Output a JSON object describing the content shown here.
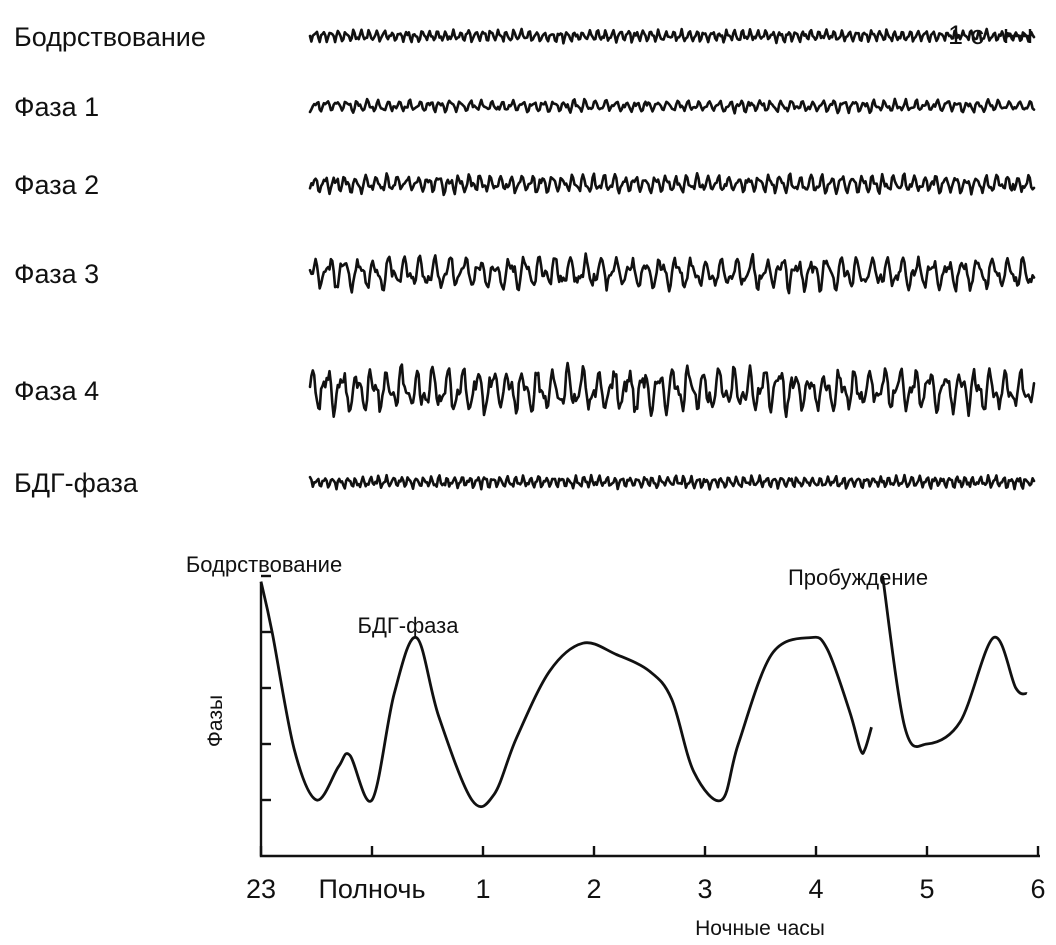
{
  "chart_data": [
    {
      "type": "line",
      "scale_bar_label": "1 с",
      "series": [
        {
          "name": "Бодрствование",
          "amplitude": "low",
          "frequency": "high"
        },
        {
          "name": "Фаза 1",
          "amplitude": "low",
          "frequency": "medium"
        },
        {
          "name": "Фаза 2",
          "amplitude": "low-medium",
          "frequency": "medium"
        },
        {
          "name": "Фаза 3",
          "amplitude": "medium-high",
          "frequency": "low"
        },
        {
          "name": "Фаза 4",
          "amplitude": "high",
          "frequency": "low"
        },
        {
          "name": "БДГ-фаза",
          "amplitude": "low",
          "frequency": "high"
        }
      ]
    },
    {
      "type": "line",
      "title": "",
      "xlabel": "Ночные часы",
      "ylabel": "Фазы",
      "x_tick_labels": [
        "23",
        "Полночь",
        "1",
        "2",
        "3",
        "4",
        "5",
        "6"
      ],
      "x_ticks": [
        23,
        24,
        25,
        26,
        27,
        28,
        29,
        30
      ],
      "xlim": [
        23,
        30
      ],
      "ylim": [
        0,
        5
      ],
      "y_ticks": [
        1,
        2,
        3,
        4,
        5
      ],
      "annotations": [
        {
          "text": "Бодрствование",
          "x": 23.0,
          "y": 5
        },
        {
          "text": "БДГ-фаза",
          "x": 24.35,
          "y": 3.9
        },
        {
          "text": "Пробуждение",
          "x": 28.4,
          "y": 5
        }
      ],
      "series": [
        {
          "x": [
            23.0,
            23.1,
            23.3,
            23.5,
            23.7,
            23.8,
            24.0,
            24.2,
            24.4,
            24.6,
            24.9,
            25.1,
            25.3,
            25.6,
            25.9,
            26.2,
            26.5,
            26.7,
            26.9,
            27.15,
            27.3,
            27.6,
            27.95,
            28.1,
            28.3,
            28.4,
            28.44,
            28.5,
            28.56,
            28.6,
            28.8,
            29.0,
            29.3,
            29.6,
            29.8,
            29.9
          ],
          "y": [
            4.9,
            4.0,
            1.9,
            1.0,
            1.6,
            1.8,
            1.0,
            2.9,
            3.9,
            2.5,
            1.0,
            1.1,
            2.1,
            3.3,
            3.8,
            3.6,
            3.3,
            2.8,
            1.5,
            1.0,
            2.0,
            3.6,
            3.9,
            3.7,
            2.6,
            1.9,
            1.9,
            2.3,
            5.0,
            5.0,
            2.3,
            2.0,
            2.4,
            3.9,
            3.0,
            2.9
          ]
        }
      ]
    }
  ]
}
